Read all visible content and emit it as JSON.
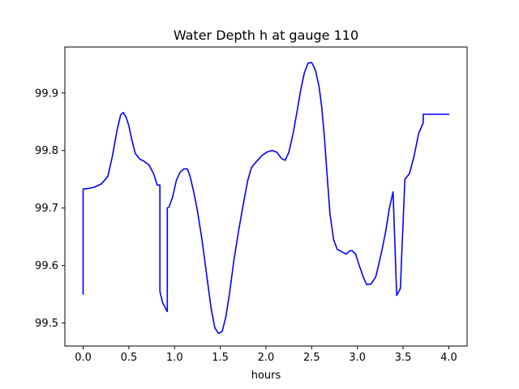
{
  "chart_data": {
    "type": "line",
    "title": "Water Depth h at gauge 110",
    "xlabel": "hours",
    "ylabel": "",
    "xlim": [
      -0.2,
      4.2
    ],
    "ylim": [
      99.46,
      99.98
    ],
    "xticks": [
      0.0,
      0.5,
      1.0,
      1.5,
      2.0,
      2.5,
      3.0,
      3.5,
      4.0
    ],
    "xtick_labels": [
      "0.0",
      "0.5",
      "1.0",
      "1.5",
      "2.0",
      "2.5",
      "3.0",
      "3.5",
      "4.0"
    ],
    "yticks": [
      99.5,
      99.6,
      99.7,
      99.8,
      99.9
    ],
    "ytick_labels": [
      "99.5",
      "99.6",
      "99.7",
      "99.8",
      "99.9"
    ],
    "grid": false,
    "series": [
      {
        "color": "#0000ff",
        "x": [
          0.0,
          0.0,
          0.05,
          0.12,
          0.2,
          0.27,
          0.32,
          0.37,
          0.41,
          0.44,
          0.47,
          0.5,
          0.53,
          0.57,
          0.62,
          0.66,
          0.72,
          0.77,
          0.81,
          0.84,
          0.84,
          0.87,
          0.92,
          0.92,
          0.94,
          0.98,
          1.02,
          1.06,
          1.1,
          1.14,
          1.17,
          1.21,
          1.25,
          1.3,
          1.35,
          1.4,
          1.44,
          1.48,
          1.52,
          1.56,
          1.6,
          1.65,
          1.7,
          1.75,
          1.8,
          1.84,
          1.88,
          1.92,
          1.96,
          2.02,
          2.07,
          2.12,
          2.17,
          2.21,
          2.25,
          2.3,
          2.34,
          2.38,
          2.42,
          2.46,
          2.5,
          2.54,
          2.58,
          2.61,
          2.64,
          2.67,
          2.7,
          2.74,
          2.78,
          2.82,
          2.85,
          2.88,
          2.91,
          2.94,
          2.98,
          3.02,
          3.07,
          3.1,
          3.15,
          3.2,
          3.23,
          3.27,
          3.31,
          3.35,
          3.39,
          3.43,
          3.47,
          3.52,
          3.57,
          3.62,
          3.67,
          3.72,
          3.72,
          3.75,
          3.75,
          3.75,
          3.8,
          3.85,
          3.9,
          3.95,
          4.0
        ],
        "y": [
          99.55,
          99.733,
          99.734,
          99.736,
          99.742,
          99.755,
          99.79,
          99.835,
          99.862,
          99.866,
          99.858,
          99.843,
          99.82,
          99.795,
          99.785,
          99.782,
          99.775,
          99.76,
          99.74,
          99.74,
          99.555,
          99.535,
          99.52,
          99.7,
          99.702,
          99.72,
          99.748,
          99.762,
          99.768,
          99.768,
          99.755,
          99.728,
          99.695,
          99.645,
          99.585,
          99.525,
          99.492,
          99.482,
          99.485,
          99.51,
          99.55,
          99.61,
          99.66,
          99.705,
          99.748,
          99.77,
          99.778,
          99.785,
          99.792,
          99.798,
          99.8,
          99.797,
          99.786,
          99.783,
          99.797,
          99.832,
          99.868,
          99.905,
          99.935,
          99.952,
          99.953,
          99.94,
          99.912,
          99.875,
          99.822,
          99.755,
          99.69,
          99.645,
          99.628,
          99.625,
          99.622,
          99.62,
          99.625,
          99.626,
          99.62,
          99.6,
          99.578,
          99.567,
          99.568,
          99.58,
          99.6,
          99.628,
          99.66,
          99.7,
          99.728,
          99.548,
          99.56,
          99.75,
          99.76,
          99.79,
          99.83,
          99.848,
          99.863,
          99.863,
          99.863,
          99.863,
          99.863,
          99.863,
          99.863,
          99.863,
          99.863
        ]
      }
    ]
  }
}
